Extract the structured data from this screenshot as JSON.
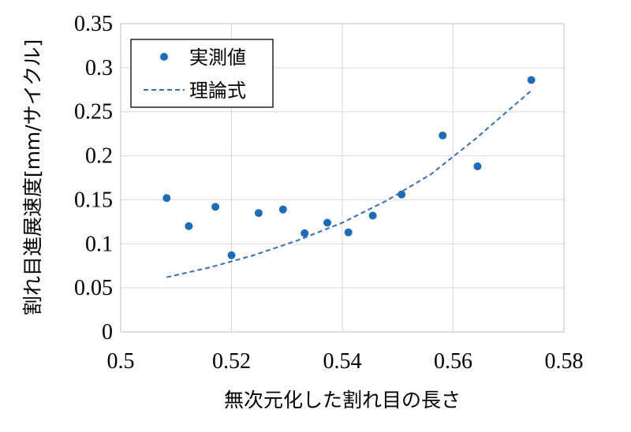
{
  "chart_data": {
    "type": "scatter",
    "xlabel": "無次元化した割れ目の長さ",
    "ylabel": "割れ目進展速度[mm/サイクル]",
    "xlim": [
      0.5,
      0.58
    ],
    "ylim": [
      0,
      0.35
    ],
    "x_ticks": [
      "0.5",
      "0.52",
      "0.54",
      "0.56",
      "0.58"
    ],
    "y_ticks": [
      "0",
      "0.05",
      "0.1",
      "0.15",
      "0.2",
      "0.25",
      "0.3",
      "0.35"
    ],
    "grid": true,
    "legend_position": "top-left",
    "series": [
      {
        "name": "実測値",
        "style": "markers",
        "color": "#1f6cb5",
        "points": [
          {
            "x": 0.5083,
            "y": 0.152
          },
          {
            "x": 0.5123,
            "y": 0.12
          },
          {
            "x": 0.5171,
            "y": 0.142
          },
          {
            "x": 0.52,
            "y": 0.087
          },
          {
            "x": 0.5249,
            "y": 0.135
          },
          {
            "x": 0.5293,
            "y": 0.139
          },
          {
            "x": 0.5332,
            "y": 0.112
          },
          {
            "x": 0.5373,
            "y": 0.124
          },
          {
            "x": 0.5411,
            "y": 0.113
          },
          {
            "x": 0.5455,
            "y": 0.132
          },
          {
            "x": 0.5507,
            "y": 0.156
          },
          {
            "x": 0.5581,
            "y": 0.223
          },
          {
            "x": 0.5644,
            "y": 0.188
          },
          {
            "x": 0.5741,
            "y": 0.286
          }
        ]
      },
      {
        "name": "理論式",
        "style": "dashed-line",
        "color": "#3a6db8",
        "points": [
          {
            "x": 0.5083,
            "y": 0.062
          },
          {
            "x": 0.516,
            "y": 0.073
          },
          {
            "x": 0.524,
            "y": 0.087
          },
          {
            "x": 0.532,
            "y": 0.104
          },
          {
            "x": 0.54,
            "y": 0.124
          },
          {
            "x": 0.548,
            "y": 0.149
          },
          {
            "x": 0.556,
            "y": 0.179
          },
          {
            "x": 0.564,
            "y": 0.219
          },
          {
            "x": 0.5741,
            "y": 0.274
          }
        ]
      }
    ]
  }
}
